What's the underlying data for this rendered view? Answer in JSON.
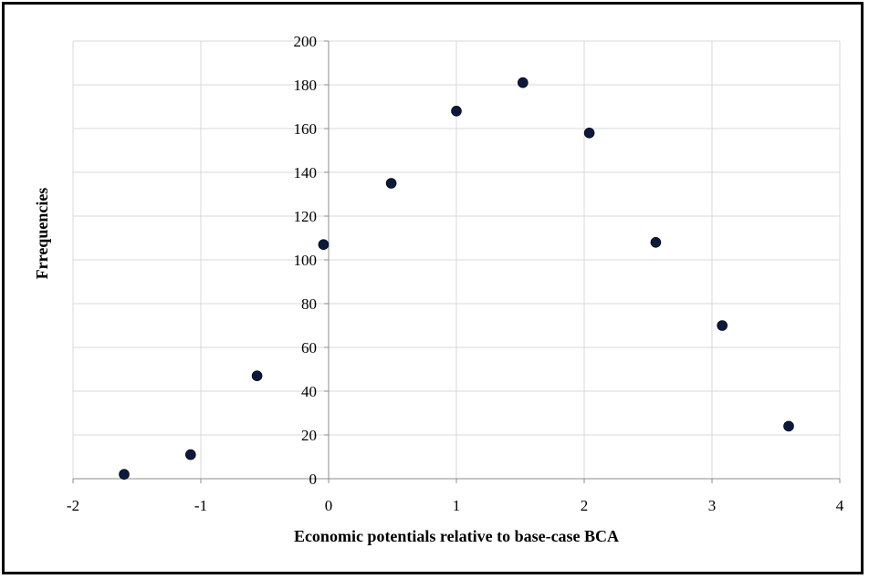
{
  "chart_data": {
    "type": "scatter",
    "title": "",
    "xlabel": "Economic potentials relative to base-case BCA",
    "ylabel": "Frrequencies",
    "xlim": [
      -2,
      4
    ],
    "ylim": [
      0,
      200
    ],
    "x_ticks": [
      -2,
      -1,
      0,
      1,
      2,
      3,
      4
    ],
    "y_ticks": [
      0,
      20,
      40,
      60,
      80,
      100,
      120,
      140,
      160,
      180,
      200
    ],
    "grid": true,
    "legend": "none",
    "marker_color": "#0a1a3c",
    "series": [
      {
        "points": [
          {
            "x": -1.6,
            "y": 2
          },
          {
            "x": -1.08,
            "y": 11
          },
          {
            "x": -0.56,
            "y": 47
          },
          {
            "x": -0.04,
            "y": 107
          },
          {
            "x": 0.49,
            "y": 135
          },
          {
            "x": 1.0,
            "y": 168
          },
          {
            "x": 1.52,
            "y": 181
          },
          {
            "x": 2.04,
            "y": 158
          },
          {
            "x": 2.56,
            "y": 108
          },
          {
            "x": 3.08,
            "y": 70
          },
          {
            "x": 3.6,
            "y": 24
          }
        ]
      }
    ]
  }
}
